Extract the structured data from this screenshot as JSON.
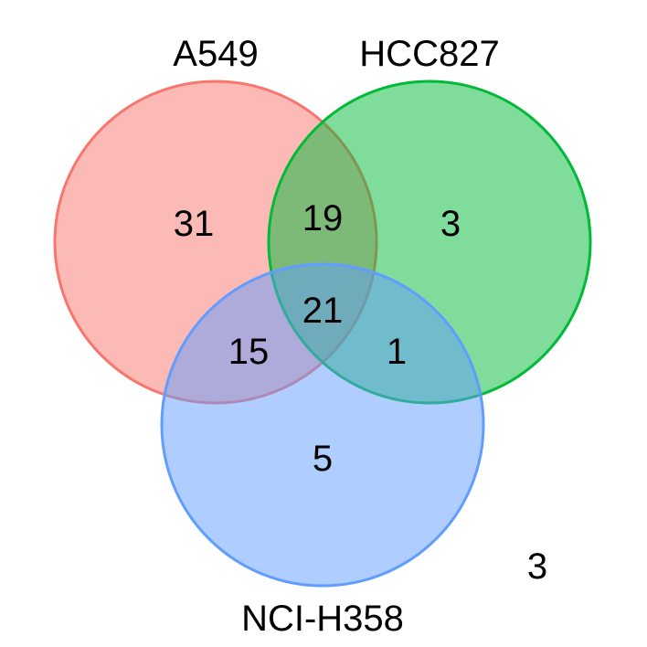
{
  "diagram": {
    "type": "venn",
    "sets": [
      {
        "name": "A549",
        "color": "#F8766D"
      },
      {
        "name": "HCC827",
        "color": "#00BA38"
      },
      {
        "name": "NCI-H358",
        "color": "#619CFF"
      }
    ],
    "regions": {
      "a549_only": "31",
      "hcc827_only": "3",
      "nci_h358_only": "5",
      "a549_hcc827": "19",
      "a549_nci_h358": "15",
      "hcc827_nci_h358": "1",
      "all_three": "21",
      "none": "3"
    }
  }
}
